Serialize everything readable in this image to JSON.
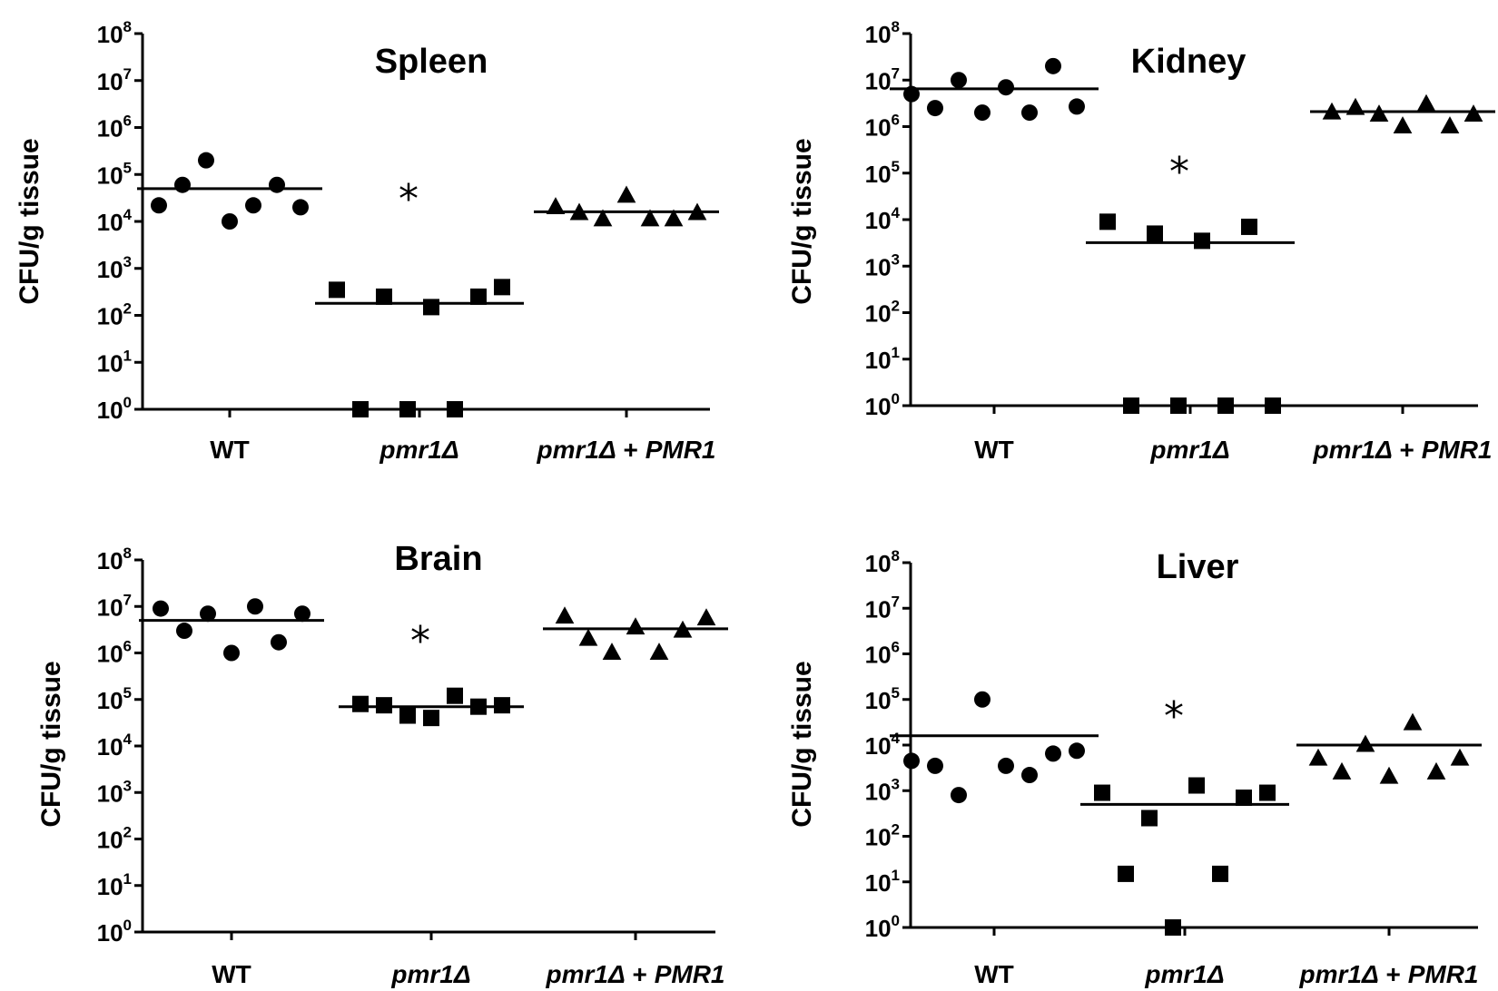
{
  "chart_data": [
    {
      "type": "scatter",
      "title": "Spleen",
      "ylabel": "CFU/g tissue",
      "yscale": "log",
      "ylim": [
        1,
        100000000
      ],
      "ytick_base": "10",
      "ytick_exponents": [
        "0",
        "1",
        "2",
        "3",
        "4",
        "5",
        "6",
        "7",
        "8"
      ],
      "categories": [
        "WT",
        "pmr1Δ",
        "pmr1Δ + PMR1"
      ],
      "category_parts": [
        [
          {
            "t": "WT",
            "italic": false
          }
        ],
        [
          {
            "t": "pmr1Δ",
            "italic": true
          }
        ],
        [
          {
            "t": "pmr1Δ",
            "italic": true
          },
          {
            "t": " + ",
            "italic": false
          },
          {
            "t": "PMR1",
            "italic": true
          }
        ]
      ],
      "series": [
        {
          "name": "WT",
          "marker": "circle",
          "values": [
            22000,
            60000,
            200000,
            10000,
            22000,
            60000,
            20000
          ],
          "mean": 50000
        },
        {
          "name": "pmr1Δ",
          "marker": "square",
          "values": [
            350,
            1,
            250,
            1,
            150,
            1,
            250,
            400
          ],
          "mean": 180,
          "significance": "*"
        },
        {
          "name": "pmr1Δ + PMR1",
          "marker": "triangle",
          "values": [
            20000,
            15000,
            11000,
            35000,
            11000,
            11000,
            15000
          ],
          "mean": 16000
        }
      ]
    },
    {
      "type": "scatter",
      "title": "Kidney",
      "ylabel": "CFU/g tissue",
      "yscale": "log",
      "ylim": [
        1,
        100000000
      ],
      "ytick_base": "10",
      "ytick_exponents": [
        "0",
        "1",
        "2",
        "3",
        "4",
        "5",
        "6",
        "7",
        "8"
      ],
      "categories": [
        "WT",
        "pmr1Δ",
        "pmr1Δ + PMR1"
      ],
      "category_parts": [
        [
          {
            "t": "WT",
            "italic": false
          }
        ],
        [
          {
            "t": "pmr1Δ",
            "italic": true
          }
        ],
        [
          {
            "t": "pmr1Δ",
            "italic": true
          },
          {
            "t": " + ",
            "italic": false
          },
          {
            "t": "PMR1",
            "italic": true
          }
        ]
      ],
      "series": [
        {
          "name": "WT",
          "marker": "circle",
          "values": [
            5000000,
            2500000,
            10000000,
            2000000,
            7000000,
            2000000,
            20000000,
            2700000
          ],
          "mean": 6500000
        },
        {
          "name": "pmr1Δ",
          "marker": "square",
          "values": [
            9000,
            1,
            5000,
            1,
            3500,
            1,
            7000,
            1
          ],
          "mean": 3200,
          "significance": "*"
        },
        {
          "name": "pmr1Δ + PMR1",
          "marker": "triangle",
          "values": [
            2000000,
            2500000,
            1800000,
            1000000,
            3000000,
            1000000,
            1800000
          ],
          "mean": 2100000
        }
      ]
    },
    {
      "type": "scatter",
      "title": "Brain",
      "ylabel": "CFU/g tissue",
      "yscale": "log",
      "ylim": [
        1,
        100000000
      ],
      "ytick_base": "10",
      "ytick_exponents": [
        "0",
        "1",
        "2",
        "3",
        "4",
        "5",
        "6",
        "7",
        "8"
      ],
      "categories": [
        "WT",
        "pmr1Δ",
        "pmr1Δ + PMR1"
      ],
      "category_parts": [
        [
          {
            "t": "WT",
            "italic": false
          }
        ],
        [
          {
            "t": "pmr1Δ",
            "italic": true
          }
        ],
        [
          {
            "t": "pmr1Δ",
            "italic": true
          },
          {
            "t": " + ",
            "italic": false
          },
          {
            "t": "PMR1",
            "italic": true
          }
        ]
      ],
      "series": [
        {
          "name": "WT",
          "marker": "circle",
          "values": [
            9000000,
            3000000,
            7000000,
            1000000,
            10000000,
            1700000,
            7000000
          ],
          "mean": 5000000
        },
        {
          "name": "pmr1Δ",
          "marker": "square",
          "values": [
            80000,
            75000,
            45000,
            40000,
            120000,
            70000,
            75000
          ],
          "mean": 70000,
          "significance": "*"
        },
        {
          "name": "pmr1Δ + PMR1",
          "marker": "triangle",
          "values": [
            6000000,
            2000000,
            1000000,
            3500000,
            1000000,
            3000000,
            5500000
          ],
          "mean": 3300000
        }
      ]
    },
    {
      "type": "scatter",
      "title": "Liver",
      "ylabel": "CFU/g tissue",
      "yscale": "log",
      "ylim": [
        1,
        100000000
      ],
      "ytick_base": "10",
      "ytick_exponents": [
        "0",
        "1",
        "2",
        "3",
        "4",
        "5",
        "6",
        "7",
        "8"
      ],
      "categories": [
        "WT",
        "pmr1Δ",
        "pmr1Δ + PMR1"
      ],
      "category_parts": [
        [
          {
            "t": "WT",
            "italic": false
          }
        ],
        [
          {
            "t": "pmr1Δ",
            "italic": true
          }
        ],
        [
          {
            "t": "pmr1Δ",
            "italic": true
          },
          {
            "t": " + ",
            "italic": false
          },
          {
            "t": "PMR1",
            "italic": true
          }
        ]
      ],
      "series": [
        {
          "name": "WT",
          "marker": "circle",
          "values": [
            4500,
            3500,
            800,
            100000,
            3500,
            2200,
            6500,
            7500
          ],
          "mean": 16000
        },
        {
          "name": "pmr1Δ",
          "marker": "square",
          "values": [
            900,
            15,
            250,
            1,
            1300,
            15,
            700,
            900
          ],
          "mean": 500,
          "significance": "*"
        },
        {
          "name": "pmr1Δ + PMR1",
          "marker": "triangle",
          "values": [
            5000,
            2500,
            10000,
            2000,
            30000,
            2500,
            5000
          ],
          "mean": 10000
        }
      ]
    }
  ]
}
